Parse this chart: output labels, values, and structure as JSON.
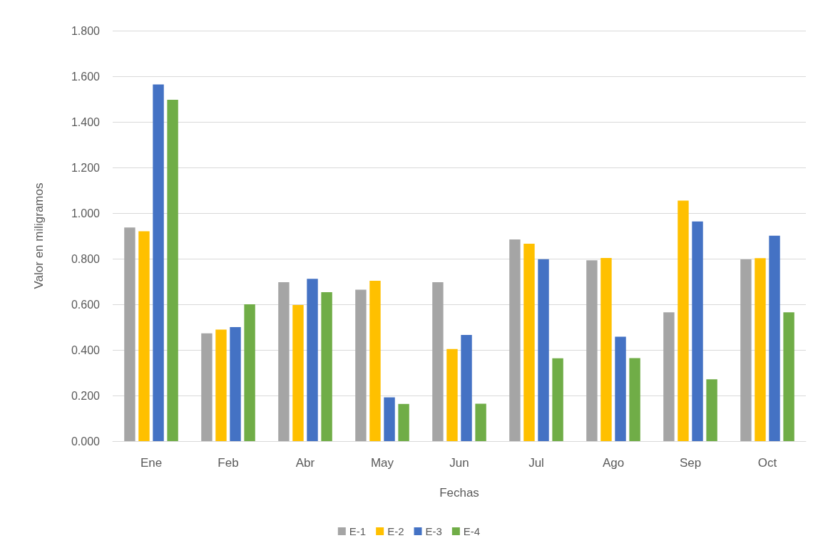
{
  "chart_data": {
    "type": "bar",
    "xlabel": "Fechas",
    "ylabel": "Valor en miligramos",
    "categories": [
      "Ene",
      "Feb",
      "Abr",
      "May",
      "Jun",
      "Jul",
      "Ago",
      "Sep",
      "Oct"
    ],
    "series": [
      {
        "name": "E-1",
        "color": "#a5a5a5",
        "values": [
          0.937,
          0.473,
          0.697,
          0.664,
          0.697,
          0.884,
          0.793,
          0.565,
          0.797
        ]
      },
      {
        "name": "E-2",
        "color": "#ffc000",
        "values": [
          0.92,
          0.489,
          0.597,
          0.703,
          0.404,
          0.866,
          0.803,
          1.055,
          0.802
        ]
      },
      {
        "name": "E-3",
        "color": "#4472c4",
        "values": [
          1.564,
          0.5,
          0.712,
          0.192,
          0.466,
          0.798,
          0.458,
          0.963,
          0.901
        ]
      },
      {
        "name": "E-4",
        "color": "#70ad47",
        "values": [
          1.497,
          0.6,
          0.653,
          0.163,
          0.164,
          0.363,
          0.364,
          0.271,
          0.565
        ]
      }
    ],
    "ylim": [
      0,
      1.8
    ],
    "yticks": [
      {
        "value": 0,
        "label": "0.000"
      },
      {
        "value": 0.2,
        "label": "0.200"
      },
      {
        "value": 0.4,
        "label": "0.400"
      },
      {
        "value": 0.6,
        "label": "0.600"
      },
      {
        "value": 0.8,
        "label": "0.800"
      },
      {
        "value": 1.0,
        "label": "1.000"
      },
      {
        "value": 1.2,
        "label": "1.200"
      },
      {
        "value": 1.4,
        "label": "1.400"
      },
      {
        "value": 1.6,
        "label": "1.600"
      },
      {
        "value": 1.8,
        "label": "1.800"
      }
    ],
    "grid": "y",
    "legend": "bottom"
  }
}
